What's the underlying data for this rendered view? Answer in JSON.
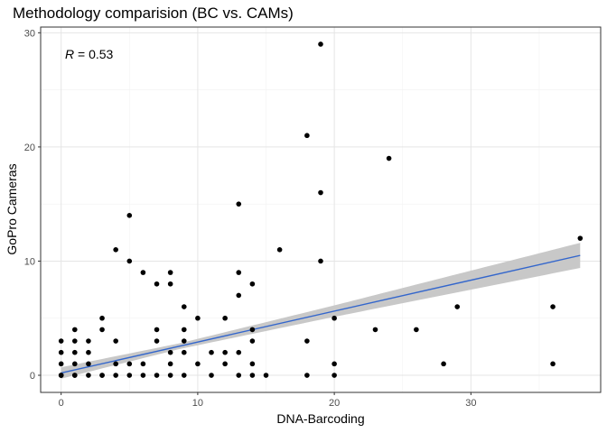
{
  "chart_data": {
    "type": "scatter",
    "title": "Methodology comparision (BC vs. CAMs)",
    "xlabel": "DNA-Barcoding",
    "ylabel": "GoPro Cameras",
    "annotation": {
      "symbol": "R",
      "text": " = 0.53"
    },
    "xlim": [
      -1.5,
      39.5
    ],
    "ylim": [
      -1.5,
      30.5
    ],
    "xticks": [
      0,
      10,
      20,
      30
    ],
    "yticks": [
      0,
      10,
      20,
      30
    ],
    "grid": true,
    "legend": "none",
    "colors": {
      "points": "#000000",
      "fit_line": "#3366cc",
      "confidence_band": "#c8c8c8",
      "grid_major": "#e5e5e5",
      "grid_minor": "#f2f2f2",
      "panel_border": "#333333"
    },
    "fit": {
      "x": [
        0,
        38
      ],
      "y": [
        0.2,
        10.5
      ],
      "ci_halfwidth_at_x": [
        [
          0,
          0.5
        ],
        [
          8.7,
          0.25
        ],
        [
          20,
          0.5
        ],
        [
          38,
          1.1
        ]
      ]
    },
    "points": {
      "x": [
        0,
        0,
        0,
        0,
        0,
        0,
        1,
        1,
        1,
        1,
        1,
        1,
        2,
        2,
        2,
        2,
        3,
        3,
        3,
        3,
        4,
        4,
        4,
        4,
        5,
        5,
        5,
        5,
        6,
        6,
        6,
        7,
        7,
        7,
        7,
        8,
        8,
        8,
        8,
        8,
        9,
        9,
        9,
        9,
        9,
        10,
        10,
        11,
        11,
        12,
        12,
        12,
        13,
        13,
        13,
        13,
        13,
        14,
        14,
        14,
        14,
        14,
        15,
        16,
        18,
        18,
        18,
        19,
        19,
        19,
        20,
        20,
        20,
        23,
        24,
        26,
        28,
        29,
        36,
        36,
        38
      ],
      "y": [
        0,
        1,
        2,
        3,
        0,
        0,
        0,
        1,
        2,
        3,
        4,
        0,
        0,
        1,
        2,
        3,
        0,
        4,
        5,
        0,
        0,
        1,
        3,
        11,
        0,
        1,
        10,
        14,
        0,
        1,
        9,
        0,
        3,
        4,
        8,
        0,
        1,
        2,
        8,
        9,
        0,
        2,
        3,
        4,
        6,
        1,
        5,
        0,
        2,
        1,
        2,
        5,
        0,
        2,
        7,
        9,
        15,
        0,
        1,
        3,
        4,
        8,
        0,
        11,
        0,
        3,
        21,
        10,
        16,
        29,
        0,
        1,
        5,
        4,
        19,
        4,
        1,
        6,
        1,
        6,
        12
      ]
    }
  }
}
